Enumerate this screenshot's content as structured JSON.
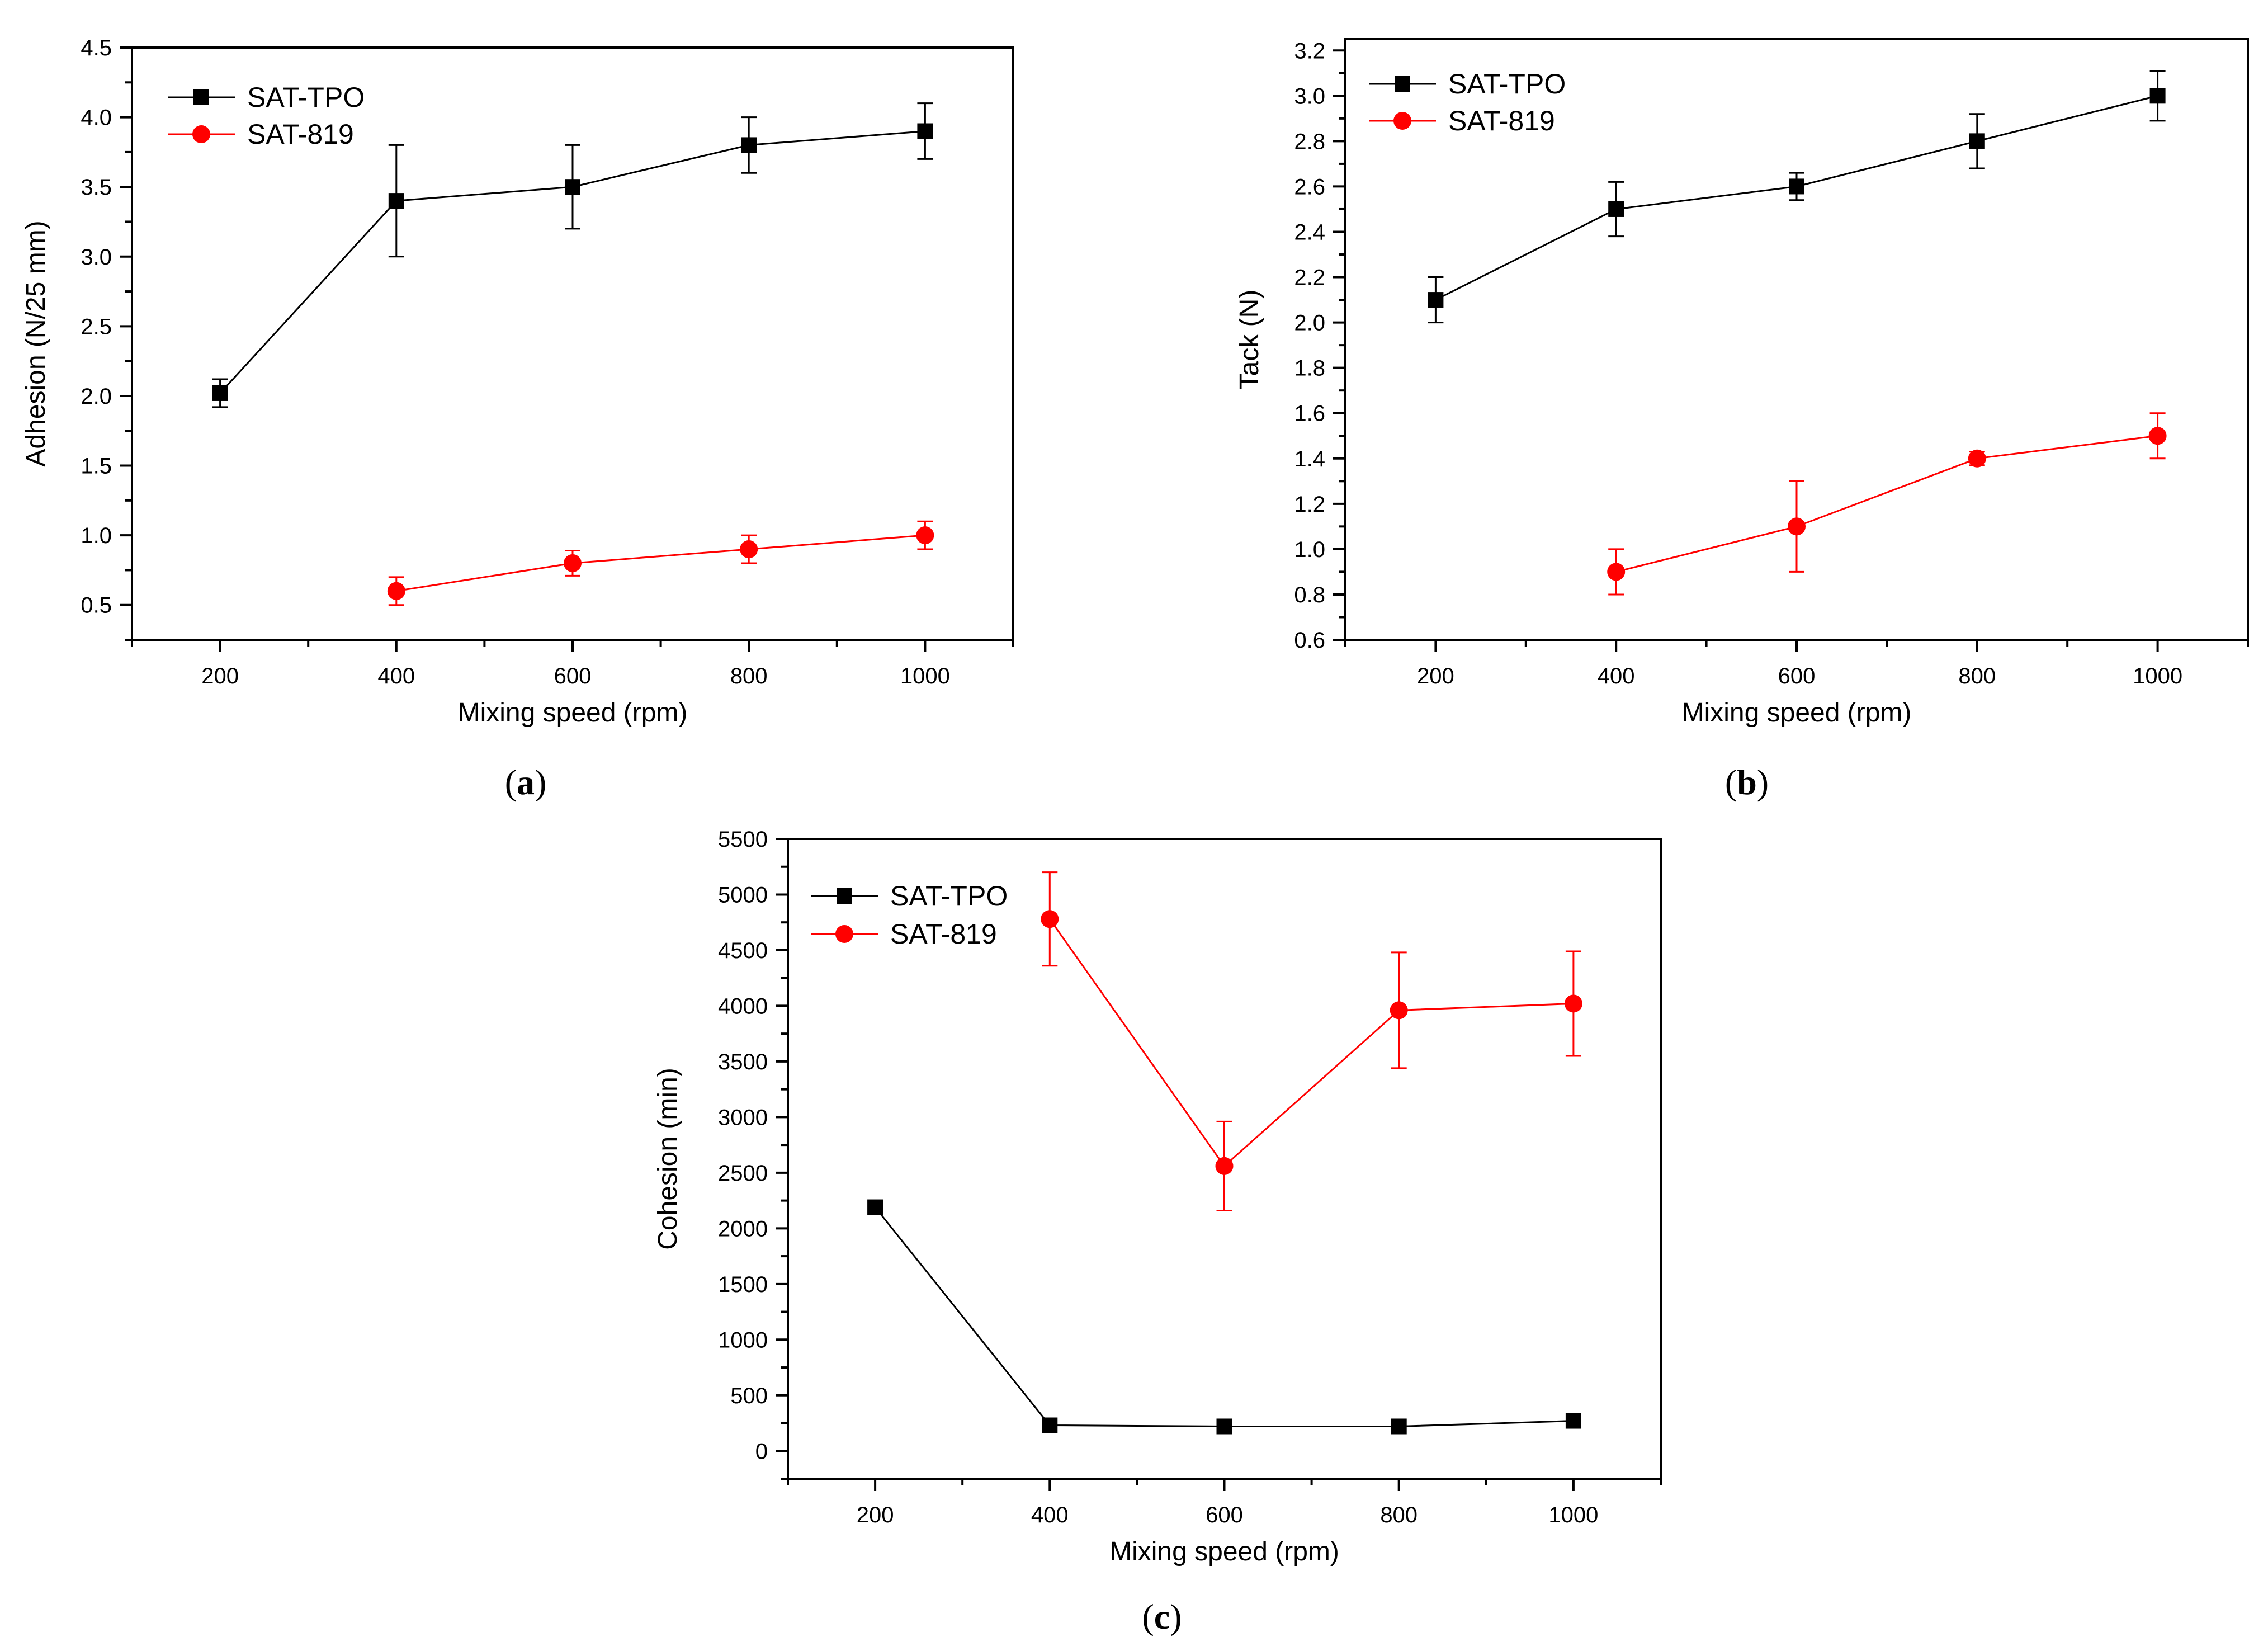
{
  "colors": {
    "SAT-TPO": "#000000",
    "SAT-819": "#ff0000"
  },
  "chart_data": [
    {
      "panel": "(a)",
      "panel_letter": "a",
      "type": "line",
      "xlabel": "Mixing speed (rpm)",
      "ylabel": "Adhesion (N/25 mm)",
      "xlim": [
        100,
        1100
      ],
      "ylim": [
        0.25,
        4.5
      ],
      "xticks": [
        200,
        400,
        600,
        800,
        1000
      ],
      "xtick_labels": [
        "200",
        "400",
        "600",
        "800",
        "1000"
      ],
      "yticks": [
        0.5,
        1.0,
        1.5,
        2.0,
        2.5,
        3.0,
        3.5,
        4.0,
        4.5
      ],
      "ytick_labels": [
        "0.5",
        "1.0",
        "1.5",
        "2.0",
        "2.5",
        "3.0",
        "3.5",
        "4.0",
        "4.5"
      ],
      "legend_position": "top-left",
      "series": [
        {
          "name": "SAT-TPO",
          "marker": "square",
          "x": [
            200,
            400,
            600,
            800,
            1000
          ],
          "y": [
            2.02,
            3.4,
            3.5,
            3.8,
            3.9
          ],
          "err": [
            0.1,
            0.4,
            0.3,
            0.2,
            0.2
          ]
        },
        {
          "name": "SAT-819",
          "marker": "circle",
          "x": [
            400,
            600,
            800,
            1000
          ],
          "y": [
            0.6,
            0.8,
            0.9,
            1.0
          ],
          "err": [
            0.1,
            0.09,
            0.1,
            0.1
          ]
        }
      ]
    },
    {
      "panel": "(b)",
      "panel_letter": "b",
      "type": "line",
      "xlabel": "Mixing speed (rpm)",
      "ylabel": "Tack (N)",
      "xlim": [
        100,
        1100
      ],
      "ylim": [
        0.6,
        3.25
      ],
      "xticks": [
        200,
        400,
        600,
        800,
        1000
      ],
      "xtick_labels": [
        "200",
        "400",
        "600",
        "800",
        "1000"
      ],
      "yticks": [
        0.6,
        0.8,
        1.0,
        1.2,
        1.4,
        1.6,
        1.8,
        2.0,
        2.2,
        2.4,
        2.6,
        2.8,
        3.0,
        3.2
      ],
      "ytick_labels": [
        "0.6",
        "0.8",
        "1.0",
        "1.2",
        "1.4",
        "1.6",
        "1.8",
        "2.0",
        "2.2",
        "2.4",
        "2.6",
        "2.8",
        "3.0",
        "3.2"
      ],
      "legend_position": "top-left",
      "series": [
        {
          "name": "SAT-TPO",
          "marker": "square",
          "x": [
            200,
            400,
            600,
            800,
            1000
          ],
          "y": [
            2.1,
            2.5,
            2.6,
            2.8,
            3.0
          ],
          "err": [
            0.1,
            0.12,
            0.06,
            0.12,
            0.11
          ]
        },
        {
          "name": "SAT-819",
          "marker": "circle",
          "x": [
            400,
            600,
            800,
            1000
          ],
          "y": [
            0.9,
            1.1,
            1.4,
            1.5
          ],
          "err": [
            0.1,
            0.2,
            0.03,
            0.1
          ]
        }
      ]
    },
    {
      "panel": "(c)",
      "panel_letter": "c",
      "type": "line",
      "xlabel": "Mixing speed (rpm)",
      "ylabel": "Cohesion (min)",
      "xlim": [
        100,
        1100
      ],
      "ylim": [
        -250,
        5500
      ],
      "xticks": [
        200,
        400,
        600,
        800,
        1000
      ],
      "xtick_labels": [
        "200",
        "400",
        "600",
        "800",
        "1000"
      ],
      "yticks": [
        0,
        500,
        1000,
        1500,
        2000,
        2500,
        3000,
        3500,
        4000,
        4500,
        5000,
        5500
      ],
      "ytick_labels": [
        "0",
        "500",
        "1000",
        "1500",
        "2000",
        "2500",
        "3000",
        "3500",
        "4000",
        "4500",
        "5000",
        "5500"
      ],
      "legend_position": "top-left",
      "series": [
        {
          "name": "SAT-TPO",
          "marker": "square",
          "x": [
            200,
            400,
            600,
            800,
            1000
          ],
          "y": [
            2190,
            230,
            220,
            220,
            270
          ],
          "err": [
            0,
            0,
            0,
            0,
            0
          ]
        },
        {
          "name": "SAT-819",
          "marker": "circle",
          "x": [
            400,
            600,
            800,
            1000
          ],
          "y": [
            4780,
            2560,
            3960,
            4020
          ],
          "err": [
            420,
            400,
            520,
            470
          ]
        }
      ]
    }
  ]
}
